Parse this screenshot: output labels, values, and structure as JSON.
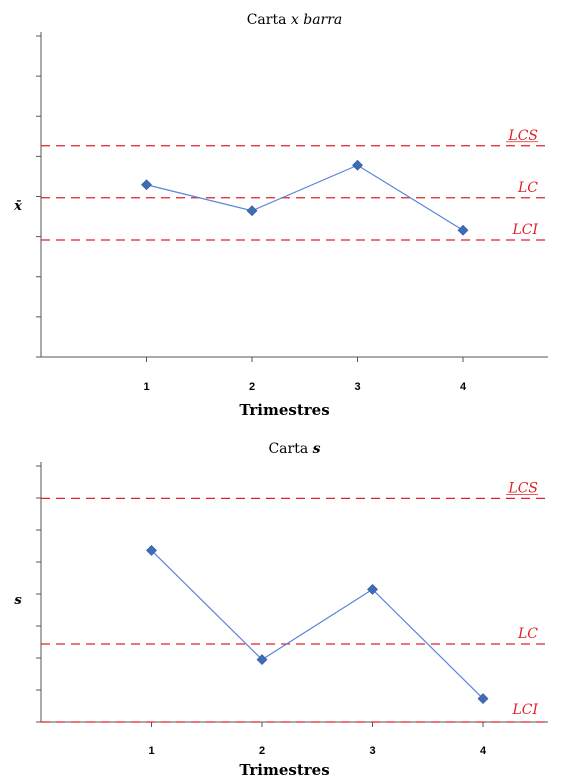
{
  "chart_data": [
    {
      "type": "line",
      "title": "Carta ",
      "title_italic": "x barra",
      "xlabel": "Trimestres",
      "ylabel": "x̄",
      "categories": [
        "1",
        "2",
        "3",
        "4"
      ],
      "x": [
        1,
        2,
        3,
        4
      ],
      "series": [
        {
          "values": [
            0.53,
            0.45,
            0.59,
            0.39
          ]
        }
      ],
      "control_lines": [
        {
          "label": "LCS",
          "value": 0.65
        },
        {
          "label": "LC",
          "value": 0.49
        },
        {
          "label": "LCI",
          "value": 0.36
        }
      ],
      "xlim": [
        0,
        4.8
      ],
      "ylim": [
        0,
        1
      ],
      "grid": false,
      "line_color": "#5a84d8",
      "marker_color": "#3f6db5",
      "control_color": "#e0202a"
    },
    {
      "type": "line",
      "title": "Carta ",
      "title_italic": "s",
      "xlabel": "Trimestres",
      "ylabel": "s",
      "categories": [
        "1",
        "2",
        "3",
        "4"
      ],
      "x": [
        1,
        2,
        3,
        4
      ],
      "series": [
        {
          "values": [
            0.66,
            0.24,
            0.51,
            0.09
          ]
        }
      ],
      "control_lines": [
        {
          "label": "LCS",
          "value": 0.86
        },
        {
          "label": "LC",
          "value": 0.3
        },
        {
          "label": "LCI",
          "value": 0.0
        }
      ],
      "xlim": [
        0,
        4.8
      ],
      "ylim": [
        0,
        1
      ],
      "grid": false,
      "line_color": "#5a84d8",
      "marker_color": "#3f6db5",
      "control_color": "#e0202a"
    }
  ]
}
